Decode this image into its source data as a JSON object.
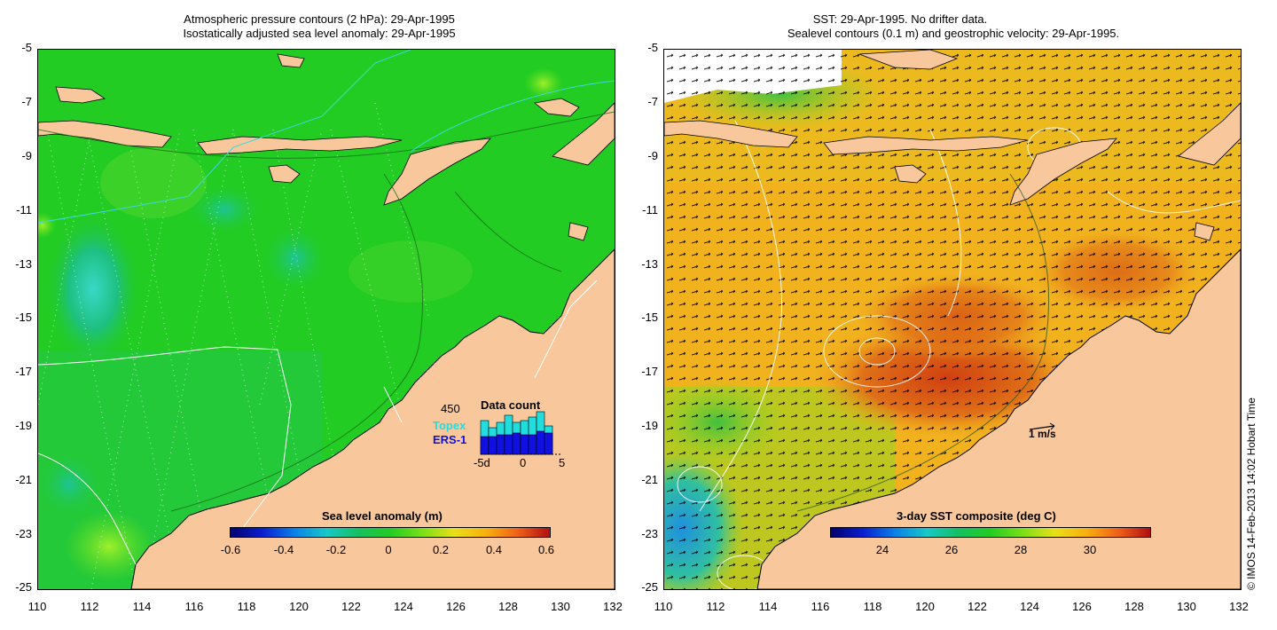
{
  "left_panel": {
    "title_line1": "Atmospheric pressure contours (2 hPa): 29-Apr-1995",
    "title_line2": "Isostatically adjusted sea level anomaly: 29-Apr-1995",
    "y_ticks": [
      "-5",
      "-7",
      "-9",
      "-11",
      "-13",
      "-15",
      "-17",
      "-19",
      "-21",
      "-23",
      "-25"
    ],
    "x_ticks": [
      "110",
      "112",
      "114",
      "116",
      "118",
      "120",
      "122",
      "124",
      "126",
      "128",
      "130",
      "132"
    ],
    "colorbar_title": "Sea level anomaly (m)",
    "colorbar_ticks": [
      "-0.6",
      "-0.4",
      "-0.2",
      "0",
      "0.2",
      "0.4",
      "0.6"
    ],
    "data_count": {
      "title": "Data count",
      "max_label": "450",
      "series1_label": "Topex",
      "series2_label": "ERS-1",
      "x_ticks": [
        "-5d",
        "0",
        "5"
      ],
      "topex_color": "#22dddd",
      "ers_color": "#1010e0"
    }
  },
  "right_panel": {
    "title_line1": "SST: 29-Apr-1995. No drifter data.",
    "title_line2": "Sealevel contours (0.1 m) and geostrophic velocity: 29-Apr-1995.",
    "y_ticks": [
      "-5",
      "-7",
      "-9",
      "-11",
      "-13",
      "-15",
      "-17",
      "-19",
      "-21",
      "-23",
      "-25"
    ],
    "x_ticks": [
      "110",
      "112",
      "114",
      "116",
      "118",
      "120",
      "122",
      "124",
      "126",
      "128",
      "130",
      "132"
    ],
    "colorbar_title": "3-day SST composite (deg C)",
    "colorbar_ticks": [
      "24",
      "26",
      "28",
      "30"
    ],
    "velocity_label": "1 m/s"
  },
  "credit": "© IMOS 14-Feb-2013 14:02 Hobart Time",
  "colors": {
    "land": "#f8c89c",
    "ocean_left": "#22cc22",
    "ocean_right": "#f2b21e"
  }
}
